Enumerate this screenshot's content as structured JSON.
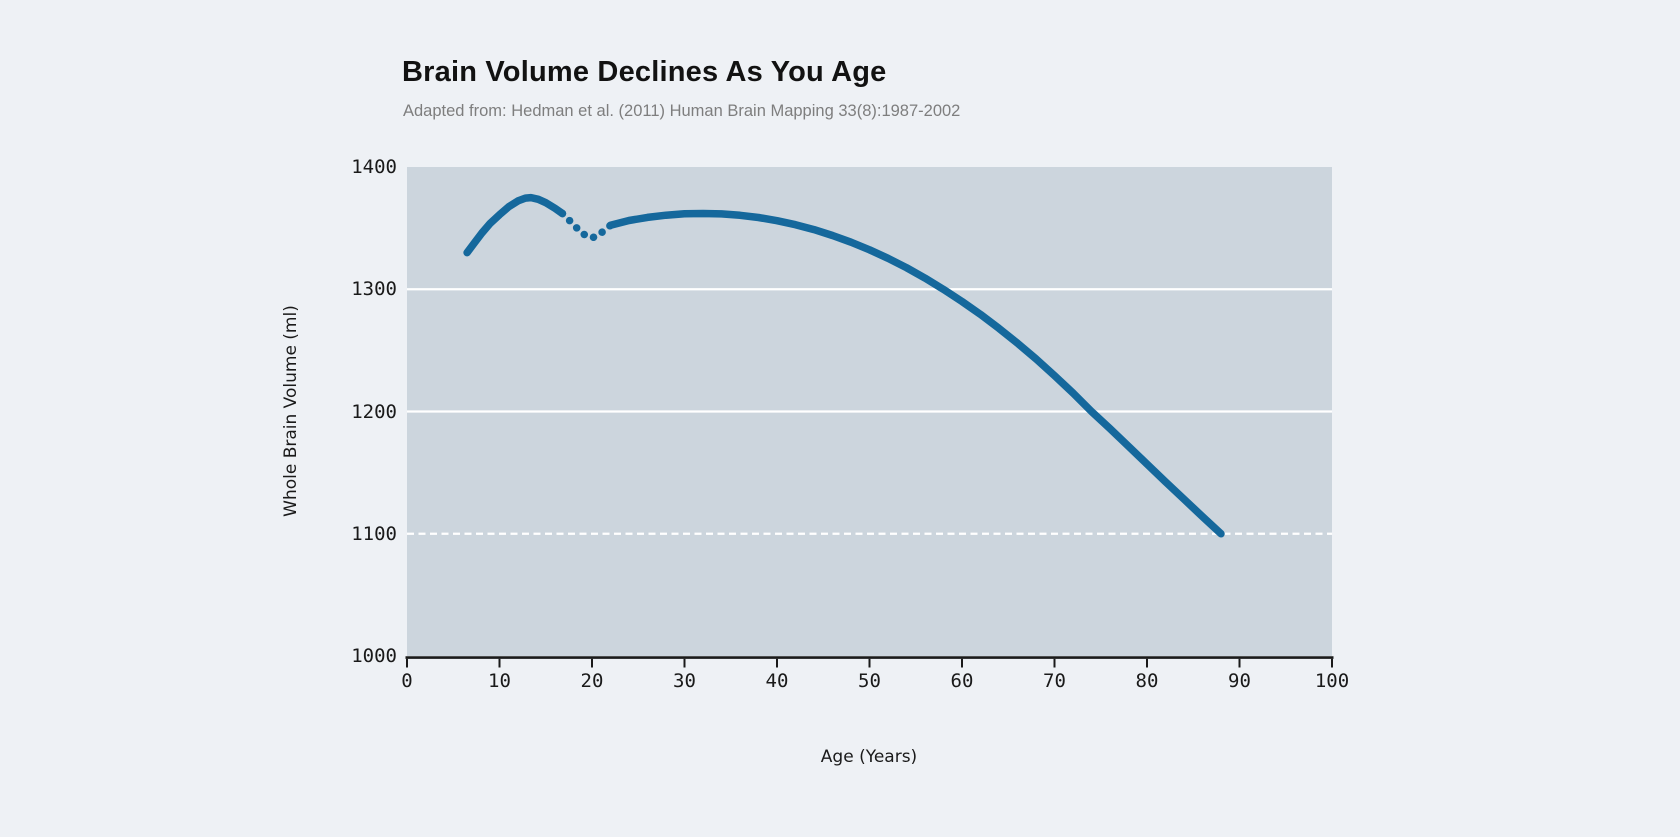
{
  "title": "Brain Volume Declines As You Age",
  "subtitle": "Adapted from: Hedman et al. (2011) Human Brain Mapping 33(8):1987-2002",
  "colors": {
    "page_bg": "#eef1f5",
    "plot_bg": "#ccd5dd",
    "line": "#15689c",
    "grid": "#ffffff",
    "axis": "#1a1a1a",
    "title_text": "#121212",
    "subtitle_text": "#7e7e7e"
  },
  "chart_data": {
    "type": "line",
    "title": "Brain Volume Declines As You Age",
    "subtitle": "Adapted from: Hedman et al. (2011) Human Brain Mapping 33(8):1987-2002",
    "xlabel": "Age (Years)",
    "ylabel": "Whole Brain Volume (ml)",
    "xlim": [
      0,
      100
    ],
    "ylim": [
      1000,
      1400
    ],
    "x_ticks": [
      0,
      10,
      20,
      30,
      40,
      50,
      60,
      70,
      80,
      90,
      100
    ],
    "y_ticks": [
      1400,
      1300,
      1200,
      1100,
      1000
    ],
    "grid": "horizontal-only",
    "gridlines_solid": [
      1300,
      1200
    ],
    "gridlines_dashed": [
      1100
    ],
    "legend": "none",
    "series": [
      {
        "name": "childhood-rise-solid",
        "style": "solid",
        "points": [
          [
            6.5,
            1330
          ],
          [
            7.3,
            1338
          ],
          [
            8.1,
            1346
          ],
          [
            9,
            1354
          ],
          [
            10,
            1361
          ],
          [
            11,
            1367.5
          ],
          [
            12,
            1372.3
          ],
          [
            12.8,
            1374.6
          ],
          [
            13.4,
            1375
          ],
          [
            14.2,
            1373.6
          ],
          [
            15,
            1370.8
          ],
          [
            16,
            1366.2
          ],
          [
            16.8,
            1362
          ]
        ]
      },
      {
        "name": "adolescent-dip-dashed",
        "style": "dashed",
        "points": [
          [
            16.8,
            1362
          ],
          [
            17.6,
            1356
          ],
          [
            18.4,
            1349.8
          ],
          [
            19.2,
            1344.5
          ],
          [
            20,
            1342
          ],
          [
            20.7,
            1344.2
          ],
          [
            21.4,
            1348.6
          ],
          [
            22,
            1352.3
          ]
        ]
      },
      {
        "name": "adult-decline-solid",
        "style": "solid",
        "points": [
          [
            22,
            1352.3
          ],
          [
            24,
            1356.2
          ],
          [
            26,
            1358.8
          ],
          [
            28,
            1360.6
          ],
          [
            30,
            1361.7
          ],
          [
            32,
            1362
          ],
          [
            34,
            1361.6
          ],
          [
            36,
            1360.5
          ],
          [
            38,
            1358.7
          ],
          [
            40,
            1356.1
          ],
          [
            42,
            1352.8
          ],
          [
            44,
            1348.8
          ],
          [
            46,
            1344
          ],
          [
            48,
            1338.5
          ],
          [
            50,
            1332.3
          ],
          [
            52,
            1325.3
          ],
          [
            54,
            1317.6
          ],
          [
            56,
            1309.1
          ],
          [
            58,
            1299.9
          ],
          [
            60,
            1290
          ],
          [
            62,
            1279.4
          ],
          [
            64,
            1268
          ],
          [
            66,
            1255.9
          ],
          [
            68,
            1243
          ],
          [
            70,
            1229.4
          ],
          [
            72,
            1215.1
          ],
          [
            74,
            1200
          ],
          [
            76,
            1186
          ],
          [
            78,
            1171.5
          ],
          [
            80,
            1157
          ],
          [
            82,
            1142.5
          ],
          [
            84,
            1128.3
          ],
          [
            86,
            1114
          ],
          [
            88,
            1100
          ]
        ]
      }
    ]
  }
}
